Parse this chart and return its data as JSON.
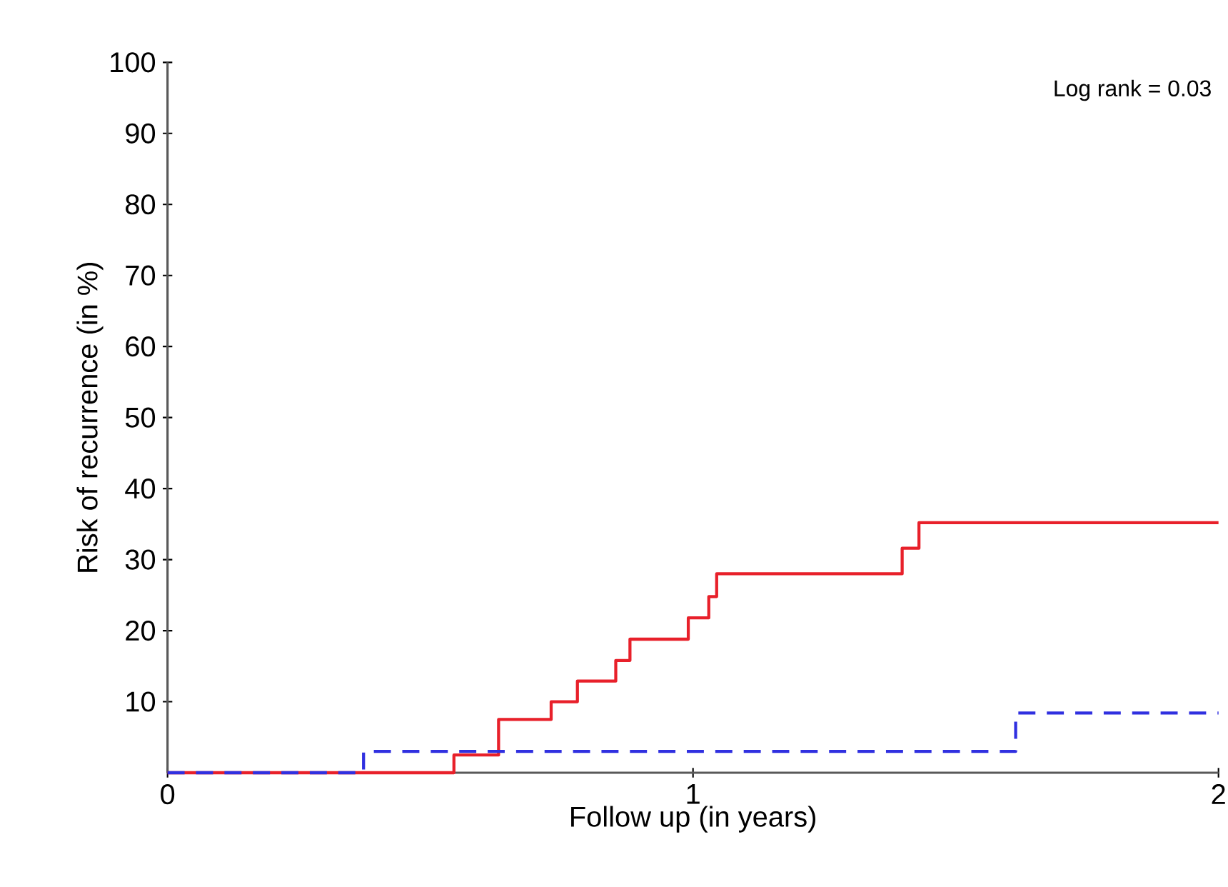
{
  "chart_data": {
    "type": "step",
    "xlabel": "Follow up (in years)",
    "ylabel": "Risk of recurrence (in %)",
    "annotations": [
      "Log rank = 0.03"
    ],
    "series": [
      {
        "color": "#e8202a",
        "line_style": "solid",
        "x": [
          0,
          0.545,
          0.63,
          0.73,
          0.78,
          0.853,
          0.88,
          0.991,
          1.03,
          1.045,
          1.398,
          1.43,
          2.0
        ],
        "values": [
          0,
          2.5,
          7.5,
          10,
          12.9,
          15.8,
          18.8,
          21.8,
          24.8,
          28.0,
          31.6,
          35.2,
          35.2
        ]
      },
      {
        "color": "#3030e0",
        "line_style": "dashed",
        "x": [
          0,
          0.373,
          1.614,
          2.0
        ],
        "values": [
          0,
          3.0,
          8.4,
          8.4
        ]
      }
    ],
    "xlim": [
      0,
      2
    ],
    "ylim": [
      0,
      100
    ],
    "xticks": [
      0,
      1,
      2
    ],
    "yticks": [
      10,
      20,
      30,
      40,
      50,
      60,
      70,
      80,
      90,
      100
    ],
    "grid": false,
    "marker": "none"
  }
}
